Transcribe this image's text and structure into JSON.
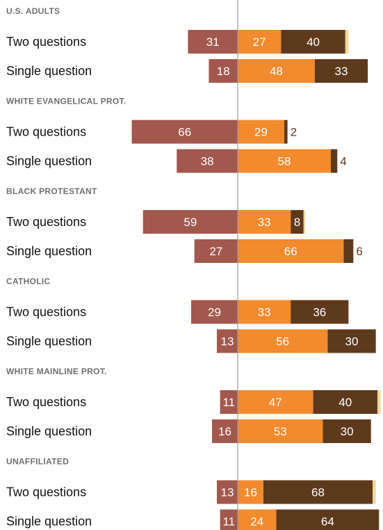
{
  "chart_data": {
    "type": "bar",
    "stacking": "diverging",
    "colors": {
      "negative": "#a2584c",
      "middle": "#f28a2e",
      "positive": "#5e3a1c",
      "remainder": "#f2d69a",
      "divider": "#9a9a9a"
    },
    "groups": [
      {
        "title": "U.S. ADULTS",
        "rows": [
          {
            "label": "Two questions",
            "values": [
              31,
              27,
              40,
              2
            ]
          },
          {
            "label": "Single question",
            "values": [
              18,
              48,
              33,
              0
            ]
          }
        ]
      },
      {
        "title": "WHITE EVANGELICAL PROT.",
        "rows": [
          {
            "label": "Two questions",
            "values": [
              66,
              29,
              2,
              0
            ]
          },
          {
            "label": "Single question",
            "values": [
              38,
              58,
              4,
              0
            ]
          }
        ]
      },
      {
        "title": "BLACK PROTESTANT",
        "rows": [
          {
            "label": "Two questions",
            "values": [
              59,
              33,
              8,
              1
            ]
          },
          {
            "label": "Single question",
            "values": [
              27,
              66,
              6,
              0
            ]
          }
        ]
      },
      {
        "title": "CATHOLIC",
        "rows": [
          {
            "label": "Two questions",
            "values": [
              29,
              33,
              36,
              0
            ]
          },
          {
            "label": "Single question",
            "values": [
              13,
              56,
              30,
              0
            ]
          }
        ]
      },
      {
        "title": "WHITE MAINLINE PROT.",
        "rows": [
          {
            "label": "Two questions",
            "values": [
              11,
              47,
              40,
              2
            ]
          },
          {
            "label": "Single question",
            "values": [
              16,
              53,
              30,
              0
            ]
          }
        ]
      },
      {
        "title": "UNAFFILIATED",
        "rows": [
          {
            "label": "Two questions",
            "values": [
              13,
              16,
              68,
              2
            ]
          },
          {
            "label": "Single question",
            "values": [
              11,
              24,
              64,
              0
            ]
          }
        ]
      }
    ]
  }
}
